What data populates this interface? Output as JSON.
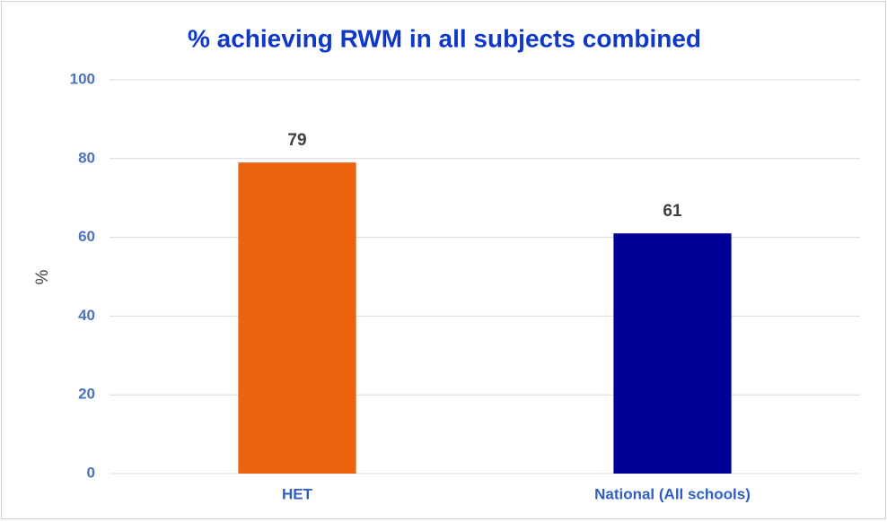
{
  "chart_data": {
    "type": "bar",
    "title": "% achieving RWM in all subjects combined",
    "y_label": "%",
    "categories": [
      "HET",
      "National (All schools)"
    ],
    "values": [
      79,
      61
    ],
    "colors": [
      "#ec630f",
      "#000099"
    ],
    "ylim": [
      0,
      100
    ],
    "yticks": [
      0,
      20,
      40,
      60,
      80,
      100
    ],
    "grid": true
  }
}
